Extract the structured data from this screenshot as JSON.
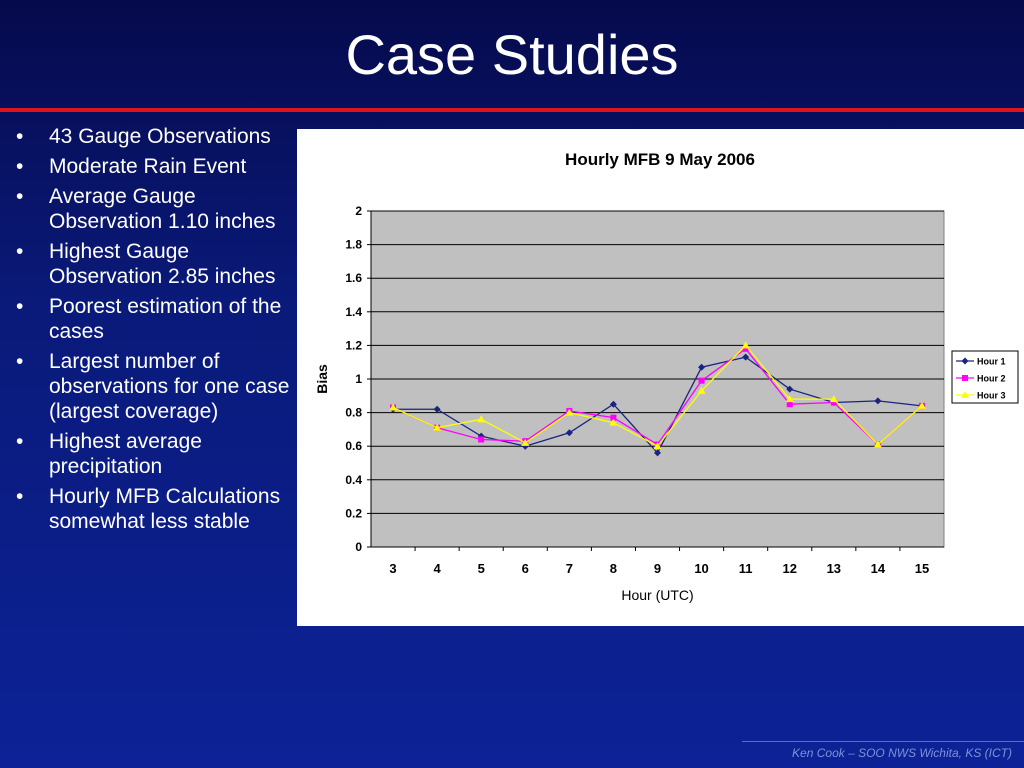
{
  "slide": {
    "title": "Case Studies",
    "bullets": [
      "43 Gauge Observations",
      "Moderate Rain Event",
      "Average Gauge Observation 1.10 inches",
      "Highest Gauge Observation 2.85 inches",
      "Poorest estimation of the cases",
      "Largest number of observations for one case (largest coverage)",
      "Highest average precipitation",
      "Hourly MFB Calculations somewhat less stable"
    ],
    "bullet_glyph": "•",
    "footer": "Ken Cook – SOO NWS Wichita, KS (ICT)",
    "colors": {
      "accent_rule": "#e0141c",
      "title_text": "#ffffff",
      "background_top": "#060a4c",
      "background_bottom": "#0c2296"
    }
  },
  "chart_data": {
    "type": "line",
    "title": "Hourly MFB 9 May 2006",
    "xlabel": "Hour (UTC)",
    "ylabel": "Bias",
    "categories": [
      "3",
      "4",
      "5",
      "6",
      "7",
      "8",
      "9",
      "10",
      "11",
      "12",
      "13",
      "14",
      "15"
    ],
    "y_ticks": [
      "0",
      "0.2",
      "0.4",
      "0.6",
      "0.8",
      "1",
      "1.2",
      "1.4",
      "1.6",
      "1.8",
      "2"
    ],
    "ylim": [
      0,
      2
    ],
    "grid": true,
    "legend_position": "right",
    "plot_background": "#c0c0c0",
    "series": [
      {
        "name": "Hour 1",
        "color": "#1a237e",
        "marker": "diamond",
        "values": [
          0.82,
          0.82,
          0.66,
          0.6,
          0.68,
          0.85,
          0.56,
          1.07,
          1.13,
          0.94,
          0.86,
          0.87,
          0.84
        ]
      },
      {
        "name": "Hour 2",
        "color": "#ff00ff",
        "marker": "square",
        "values": [
          0.83,
          0.71,
          0.64,
          0.63,
          0.81,
          0.77,
          0.61,
          0.99,
          1.18,
          0.85,
          0.86,
          0.61,
          0.84
        ]
      },
      {
        "name": "Hour 3",
        "color": "#ffff00",
        "marker": "triangle",
        "values": [
          0.83,
          0.71,
          0.76,
          0.62,
          0.8,
          0.74,
          0.6,
          0.93,
          1.2,
          0.88,
          0.88,
          0.61,
          0.84
        ]
      }
    ]
  }
}
